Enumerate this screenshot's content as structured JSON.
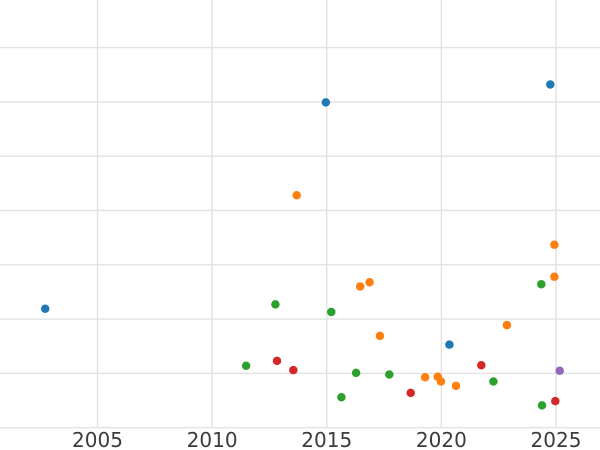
{
  "chart_data": {
    "type": "scatter",
    "title": "",
    "xlabel": "",
    "ylabel": "",
    "x_axis": {
      "ticks": [
        2005,
        2010,
        2015,
        2020,
        2025
      ],
      "tick_labels": [
        "2005",
        "2010",
        "2015",
        "2020",
        "2025"
      ],
      "visible_range": [
        2000.7,
        2026.9
      ]
    },
    "y_axis": {
      "labels_visible": false,
      "note": "y-axis tick labels are cropped outside the visible image; y values are expressed in gridline units measured up from the bottom gridline",
      "gridline_values": [
        0,
        1,
        2,
        3,
        4,
        5,
        6,
        7
      ],
      "visible_range": [
        -0.05,
        7.9
      ]
    },
    "grid": true,
    "legend": "none",
    "style": {
      "background_color": "#ffffff",
      "grid_color": "#e2e2e2",
      "tick_label_color": "#3c3c3c",
      "tick_label_font_px": 20,
      "marker_diameter_px": 8.5
    },
    "series": [
      {
        "name": "blue",
        "color": "#1f77b4",
        "points": [
          [
            2002.72,
            2.19
          ],
          [
            2014.96,
            5.99
          ],
          [
            2020.35,
            1.53
          ],
          [
            2024.75,
            6.32
          ]
        ]
      },
      {
        "name": "orange",
        "color": "#ff7f0e",
        "points": [
          [
            2013.69,
            4.28
          ],
          [
            2016.46,
            2.6
          ],
          [
            2016.87,
            2.68
          ],
          [
            2017.32,
            1.69
          ],
          [
            2019.29,
            0.93
          ],
          [
            2019.84,
            0.94
          ],
          [
            2019.98,
            0.85
          ],
          [
            2020.64,
            0.77
          ],
          [
            2022.86,
            1.89
          ],
          [
            2024.93,
            3.37
          ],
          [
            2024.93,
            2.78
          ]
        ]
      },
      {
        "name": "green",
        "color": "#2ca02c",
        "points": [
          [
            2011.48,
            1.14
          ],
          [
            2012.76,
            2.27
          ],
          [
            2015.2,
            2.13
          ],
          [
            2015.64,
            0.56
          ],
          [
            2016.28,
            1.01
          ],
          [
            2017.73,
            0.98
          ],
          [
            2022.27,
            0.85
          ],
          [
            2024.36,
            2.64
          ],
          [
            2024.39,
            0.41
          ]
        ]
      },
      {
        "name": "red",
        "color": "#d62728",
        "points": [
          [
            2012.83,
            1.23
          ],
          [
            2013.54,
            1.06
          ],
          [
            2018.66,
            0.64
          ],
          [
            2021.74,
            1.15
          ],
          [
            2024.97,
            0.49
          ]
        ]
      },
      {
        "name": "purple",
        "color": "#9467bd",
        "points": [
          [
            2025.16,
            1.05
          ]
        ]
      }
    ]
  }
}
